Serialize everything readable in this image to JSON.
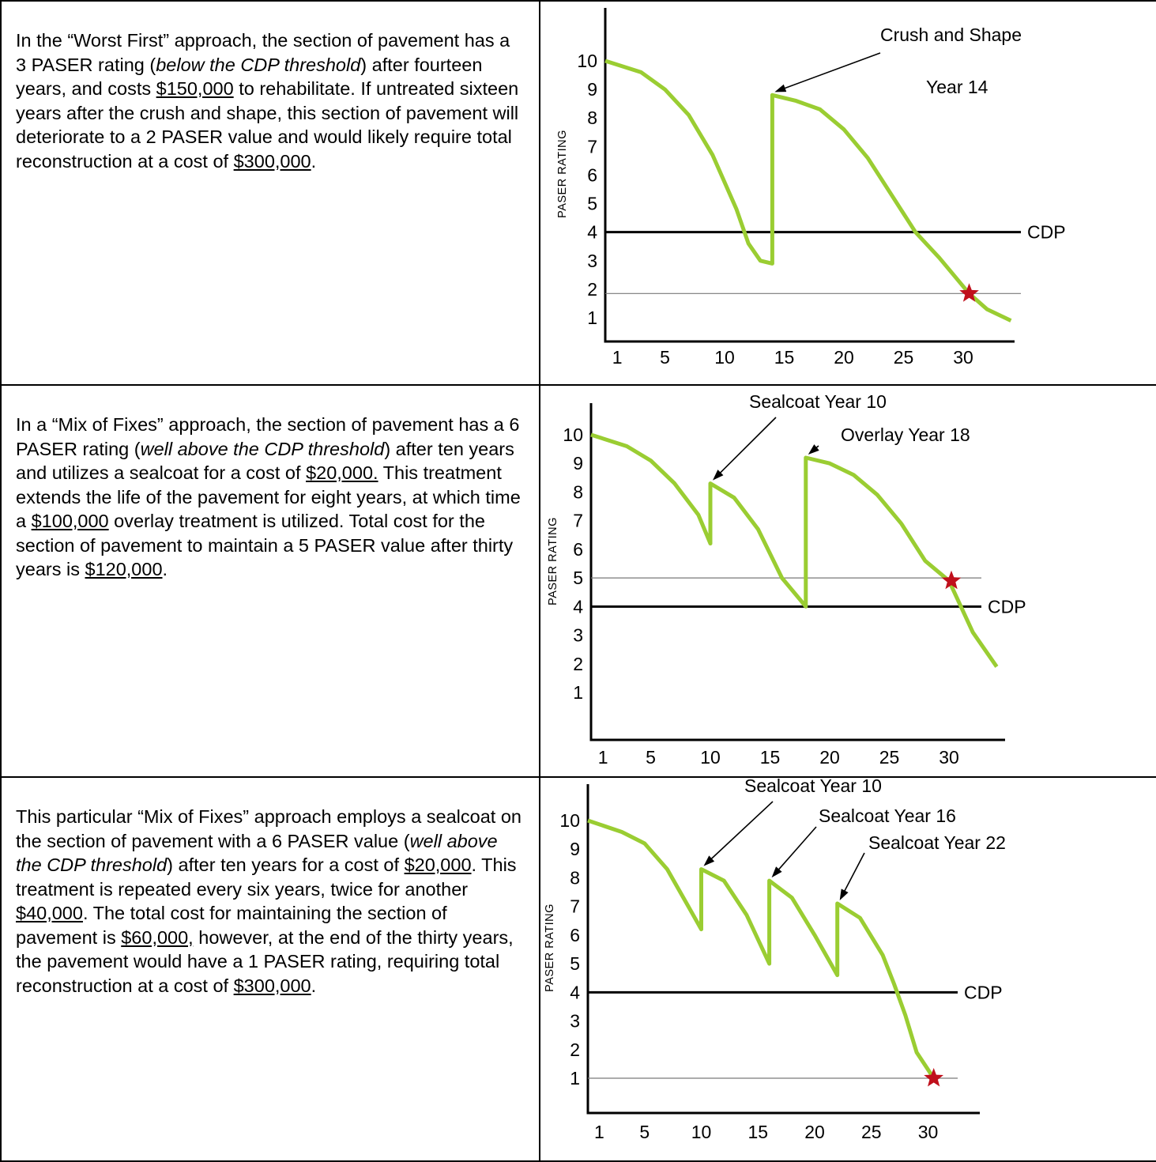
{
  "rows": [
    {
      "paragraph": [
        {
          "t": "In the “Worst First” approach, the section of pavement has a 3 PASER rating ("
        },
        {
          "t": "below the CDP threshold",
          "s": "i"
        },
        {
          "t": ") after fourteen years, and costs "
        },
        {
          "t": "$150,000",
          "s": "u"
        },
        {
          "t": " to rehabilitate.  If untreated sixteen years after the crush and shape, this section of pavement will deteriorate to a 2 PASER value and would likely require total reconstruction at a cost of "
        },
        {
          "t": "$300,000",
          "s": "u"
        },
        {
          "t": "."
        }
      ]
    },
    {
      "paragraph": [
        {
          "t": "In a “Mix of Fixes” approach, the section of pavement has a 6 PASER rating ("
        },
        {
          "t": "well above the CDP threshold",
          "s": "i"
        },
        {
          "t": ") after ten years and utilizes a sealcoat for a cost of "
        },
        {
          "t": "$20,000.",
          "s": "u"
        },
        {
          "t": " This treatment extends the life of the pavement for eight years, at which time a "
        },
        {
          "t": "$100,000",
          "s": "u"
        },
        {
          "t": " overlay treatment is utilized.  Total cost for the section of pavement to maintain a 5 PASER value after thirty years is "
        },
        {
          "t": "$120,000",
          "s": "u"
        },
        {
          "t": "."
        }
      ]
    },
    {
      "paragraph": [
        {
          "t": "This particular “Mix of Fixes” approach employs a sealcoat on the section of pavement with a 6 PASER value ("
        },
        {
          "t": "well above the CDP threshold",
          "s": "i"
        },
        {
          "t": ") after ten years for a cost of "
        },
        {
          "t": "$20,000",
          "s": "u"
        },
        {
          "t": ".  This treatment is repeated every six years, twice for another "
        },
        {
          "t": "$40,000",
          "s": "u"
        },
        {
          "t": ".  The total cost for maintaining the section of pavement is "
        },
        {
          "t": "$60,000,",
          "s": "u"
        },
        {
          "t": " however, at the end of the thirty years, the pavement would have a 1 PASER rating, requiring total reconstruction at a cost of "
        },
        {
          "t": "$300,000",
          "s": "u"
        },
        {
          "t": "."
        }
      ]
    }
  ],
  "colors": {
    "curve": "#9acd32",
    "star": "#c0101c",
    "axis": "#000000",
    "reference": "#7a7a7a"
  },
  "chart_data": [
    {
      "type": "line",
      "title": "",
      "xlabel": "",
      "ylabel": "PASER RATING",
      "x_ticks": [
        "1",
        "5",
        "10",
        "15",
        "20",
        "25",
        "30"
      ],
      "y_ticks": [
        "1",
        "2",
        "3",
        "4",
        "5",
        "6",
        "7",
        "8",
        "9",
        "10"
      ],
      "xlim": [
        0,
        34
      ],
      "ylim": [
        0,
        11
      ],
      "threshold": {
        "label": "CDP",
        "value": 4
      },
      "reference_value": 1.85,
      "series": [
        {
          "x": [
            0,
            3,
            5,
            7,
            9,
            11,
            12,
            13,
            14,
            14,
            16,
            18,
            20,
            22,
            24,
            26,
            28,
            30.5,
            32,
            34
          ],
          "y": [
            10,
            9.6,
            9.0,
            8.1,
            6.7,
            4.8,
            3.6,
            3.0,
            2.9,
            8.8,
            8.6,
            8.3,
            7.6,
            6.6,
            5.3,
            4.0,
            3.1,
            1.85,
            1.3,
            0.9
          ]
        }
      ],
      "treatments": [
        {
          "x": 14,
          "label": "Crush and Shape",
          "label2": "Year 14"
        }
      ],
      "end_marker": {
        "x": 30.5,
        "y": 1.85
      }
    },
    {
      "type": "line",
      "title": "",
      "xlabel": "",
      "ylabel": "PASER RATING",
      "x_ticks": [
        "1",
        "5",
        "10",
        "15",
        "20",
        "25",
        "30"
      ],
      "y_ticks": [
        "1",
        "2",
        "3",
        "4",
        "5",
        "6",
        "7",
        "8",
        "9",
        "10"
      ],
      "xlim": [
        0,
        34
      ],
      "ylim": [
        0,
        11
      ],
      "threshold": {
        "label": "CDP",
        "value": 4
      },
      "reference_value": 5,
      "series": [
        {
          "x": [
            0,
            3,
            5,
            7,
            9,
            10,
            10,
            12,
            14,
            16,
            18,
            18,
            20,
            22,
            24,
            26,
            28,
            30,
            31,
            32,
            33,
            34
          ],
          "y": [
            10,
            9.6,
            9.1,
            8.3,
            7.2,
            6.2,
            8.3,
            7.8,
            6.7,
            5.0,
            4.0,
            9.2,
            9.0,
            8.6,
            7.9,
            6.9,
            5.6,
            4.9,
            4.0,
            3.1,
            2.5,
            1.9
          ]
        }
      ],
      "treatments": [
        {
          "x": 10,
          "label": "Sealcoat Year 10"
        },
        {
          "x": 18,
          "label": "Overlay Year 18"
        }
      ],
      "end_marker": {
        "x": 30.2,
        "y": 4.9
      }
    },
    {
      "type": "line",
      "title": "",
      "xlabel": "",
      "ylabel": "PASER RATING",
      "x_ticks": [
        "1",
        "5",
        "10",
        "15",
        "20",
        "25",
        "30"
      ],
      "y_ticks": [
        "1",
        "2",
        "3",
        "4",
        "5",
        "6",
        "7",
        "8",
        "9",
        "10"
      ],
      "xlim": [
        0,
        34
      ],
      "ylim": [
        0,
        11
      ],
      "threshold": {
        "label": "CDP",
        "value": 4
      },
      "reference_value": 1,
      "series": [
        {
          "x": [
            0,
            3,
            5,
            7,
            9,
            10,
            10,
            12,
            14,
            16,
            16,
            18,
            20,
            22,
            22,
            24,
            26,
            27,
            28,
            29,
            30.5
          ],
          "y": [
            10,
            9.6,
            9.2,
            8.3,
            6.9,
            6.2,
            8.3,
            7.9,
            6.7,
            5.0,
            7.9,
            7.3,
            6.0,
            4.6,
            7.1,
            6.6,
            5.3,
            4.3,
            3.2,
            1.9,
            1.0
          ]
        }
      ],
      "treatments": [
        {
          "x": 10,
          "label": "Sealcoat Year 10"
        },
        {
          "x": 16,
          "label": "Sealcoat Year 16"
        },
        {
          "x": 22,
          "label": "Sealcoat Year 22"
        }
      ],
      "end_marker": {
        "x": 30.5,
        "y": 1.0
      }
    }
  ]
}
